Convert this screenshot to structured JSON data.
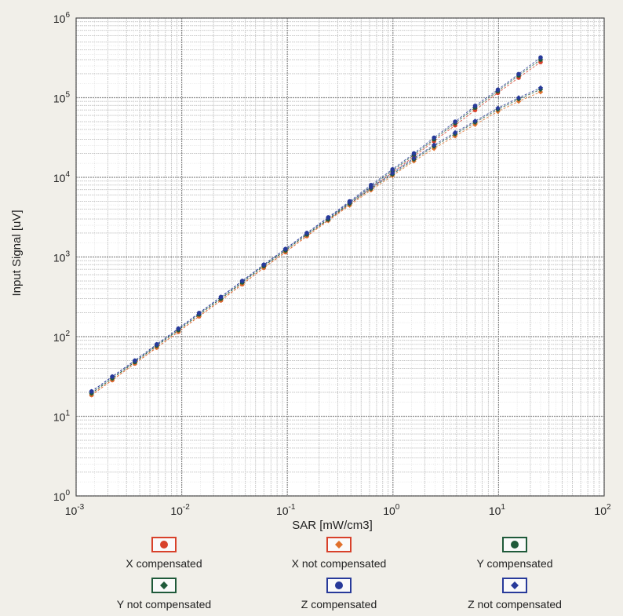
{
  "chart_data": {
    "type": "scatter",
    "xscale": "log",
    "yscale": "log",
    "xlim": [
      0.001,
      100
    ],
    "ylim": [
      1,
      1000000
    ],
    "grid": true,
    "xlabel": "SAR [mW/cm3]",
    "ylabel": "Input Signal [uV]",
    "xticks": [
      {
        "value": 0.001,
        "base": "10",
        "exp": "-3"
      },
      {
        "value": 0.01,
        "base": "10",
        "exp": "-2"
      },
      {
        "value": 0.1,
        "base": "10",
        "exp": "-1"
      },
      {
        "value": 1,
        "base": "10",
        "exp": "0"
      },
      {
        "value": 10,
        "base": "10",
        "exp": "1"
      },
      {
        "value": 100,
        "base": "10",
        "exp": "2"
      }
    ],
    "yticks": [
      {
        "value": 1,
        "base": "10",
        "exp": "0"
      },
      {
        "value": 10,
        "base": "10",
        "exp": "1"
      },
      {
        "value": 100,
        "base": "10",
        "exp": "2"
      },
      {
        "value": 1000,
        "base": "10",
        "exp": "3"
      },
      {
        "value": 10000,
        "base": "10",
        "exp": "4"
      },
      {
        "value": 100000,
        "base": "10",
        "exp": "5"
      },
      {
        "value": 1000000,
        "base": "10",
        "exp": "6"
      }
    ],
    "legend_position": "bottom",
    "x": [
      0.0014,
      0.0022,
      0.0036,
      0.0058,
      0.0093,
      0.0146,
      0.0235,
      0.0374,
      0.0598,
      0.096,
      0.153,
      0.244,
      0.389,
      0.62,
      0.99,
      1.58,
      2.45,
      3.88,
      6.0,
      9.85,
      15.5,
      25.0
    ],
    "series": [
      {
        "name": "X compensated",
        "marker": "circle",
        "color": "#d8412a",
        "values": [
          18.5,
          28.5,
          46,
          73,
          115,
          180,
          285,
          455,
          730,
          1150,
          1830,
          2900,
          4600,
          7300,
          11500,
          18300,
          28500,
          45000,
          70000,
          115000,
          178000,
          280000
        ]
      },
      {
        "name": "X not compensated",
        "marker": "diamond",
        "color": "#e0702c",
        "values": [
          18.5,
          28.5,
          46,
          73,
          115,
          180,
          285,
          455,
          730,
          1150,
          1830,
          2850,
          4450,
          6900,
          10500,
          16000,
          23000,
          33000,
          46000,
          67000,
          90000,
          118000
        ]
      },
      {
        "name": "Y compensated",
        "marker": "circle",
        "color": "#1f5a3a",
        "values": [
          19.5,
          30,
          48,
          77,
          121,
          190,
          300,
          480,
          770,
          1210,
          1920,
          3000,
          4800,
          7700,
          12100,
          19200,
          30000,
          48000,
          75000,
          121000,
          190000,
          300000
        ]
      },
      {
        "name": "Y not compensated",
        "marker": "diamond",
        "color": "#1f5a3a",
        "values": [
          19.5,
          30,
          48,
          77,
          121,
          190,
          300,
          480,
          770,
          1210,
          1920,
          2950,
          4650,
          7200,
          10900,
          16800,
          24500,
          35000,
          49000,
          71000,
          96000,
          127000
        ]
      },
      {
        "name": "Z compensated",
        "marker": "circle",
        "color": "#283a9a",
        "values": [
          20.5,
          31.5,
          50,
          80,
          126,
          198,
          315,
          500,
          800,
          1260,
          2000,
          3150,
          5000,
          8000,
          12600,
          20000,
          31500,
          50000,
          79000,
          126000,
          198000,
          320000
        ]
      },
      {
        "name": "Z not compensated",
        "marker": "diamond",
        "color": "#283a9a",
        "values": [
          20.5,
          31.5,
          50,
          80,
          126,
          198,
          315,
          500,
          800,
          1260,
          2000,
          3100,
          4850,
          7500,
          11300,
          17400,
          25500,
          36500,
          51000,
          74000,
          100000,
          133000
        ]
      }
    ]
  },
  "legend": [
    {
      "label": "X compensated",
      "marker": "circle",
      "color": "#d8412a",
      "frame": "#d8412a"
    },
    {
      "label": "X not compensated",
      "marker": "diamond",
      "color": "#e0702c",
      "frame": "#d8412a"
    },
    {
      "label": "Y compensated",
      "marker": "circle",
      "color": "#1f5a3a",
      "frame": "#1f5a3a"
    },
    {
      "label": "Y not compensated",
      "marker": "diamond",
      "color": "#1f5a3a",
      "frame": "#1f5a3a"
    },
    {
      "label": "Z compensated",
      "marker": "circle",
      "color": "#283a9a",
      "frame": "#283a9a"
    },
    {
      "label": "Z not compensated",
      "marker": "diamond",
      "color": "#283a9a",
      "frame": "#283a9a"
    }
  ],
  "colors": {
    "background": "#f1efe9",
    "plot_background": "#ffffff",
    "grid_major": "#8a8a8a",
    "grid_minor": "#bdbdbd"
  }
}
